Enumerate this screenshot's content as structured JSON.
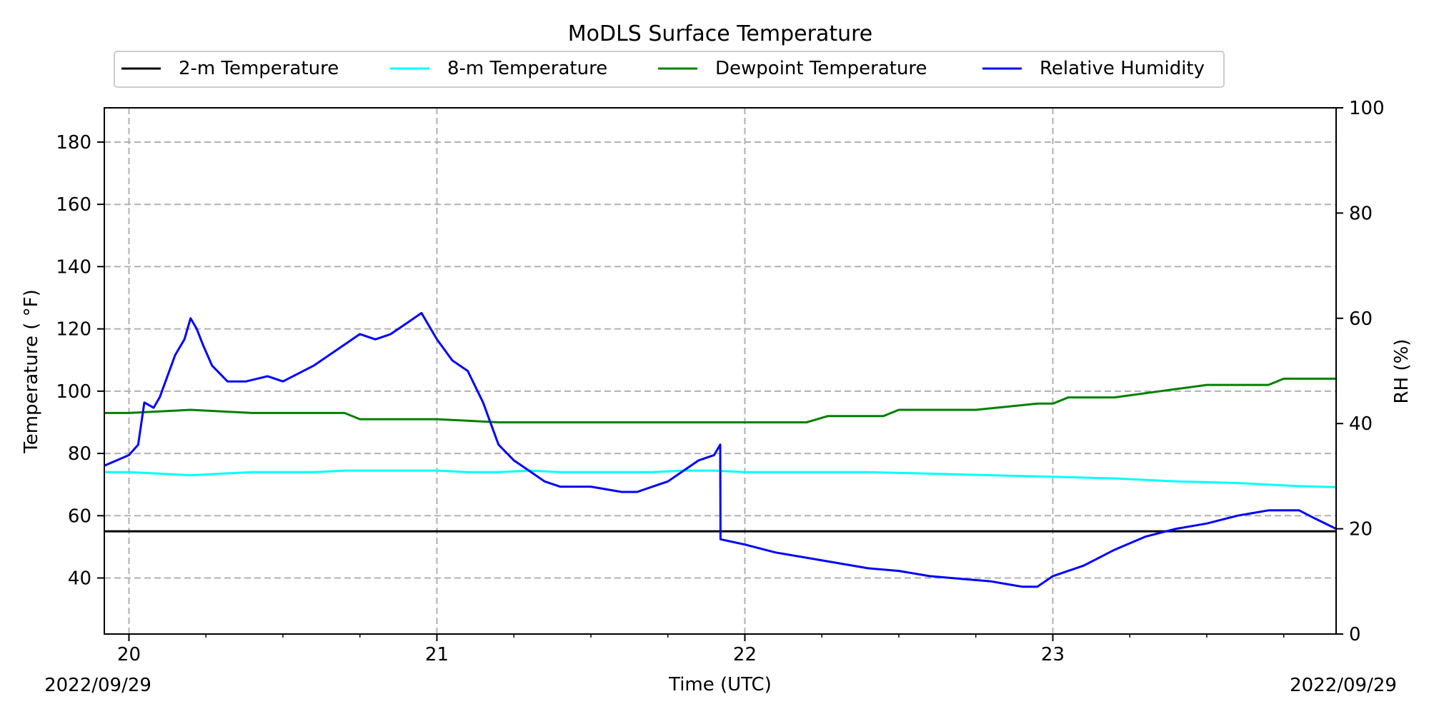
{
  "chart_data": {
    "type": "line",
    "title": "MoDLS Surface Temperature",
    "xlabel": "Time (UTC)",
    "ylabel_left": "Temperature ( °F)",
    "ylabel_right": "RH (%)",
    "x_unit": "hour (UTC), 2022/09/29",
    "xlim": [
      19.92,
      23.92
    ],
    "ylim_left": [
      22,
      191
    ],
    "ylim_right": [
      0,
      100
    ],
    "x_ticks": [
      20,
      21,
      22,
      23
    ],
    "x_tick_labels": [
      "20",
      "21",
      "22",
      "23"
    ],
    "y_ticks_left": [
      40,
      60,
      80,
      100,
      120,
      140,
      160,
      180
    ],
    "y_ticks_right": [
      0,
      20,
      40,
      60,
      80,
      100
    ],
    "date_left": "2022/09/29",
    "date_right": "2022/09/29",
    "grid": true,
    "legend_position": "top, above plot",
    "series": [
      {
        "name": "2-m Temperature",
        "axis": "left",
        "color": "#000000",
        "x": [
          19.92,
          20.5,
          21.0,
          21.5,
          22.0,
          22.5,
          23.0,
          23.5,
          23.92
        ],
        "y": [
          55,
          55,
          55,
          55,
          55,
          55,
          55,
          55,
          55
        ]
      },
      {
        "name": "8-m Temperature",
        "axis": "left",
        "color": "#00ffff",
        "x": [
          19.92,
          20.0,
          20.1,
          20.2,
          20.3,
          20.4,
          20.5,
          20.6,
          20.7,
          20.8,
          20.9,
          21.0,
          21.1,
          21.2,
          21.3,
          21.4,
          21.5,
          21.6,
          21.7,
          21.8,
          21.9,
          22.0,
          22.2,
          22.4,
          22.6,
          22.8,
          23.0,
          23.2,
          23.4,
          23.6,
          23.8,
          23.92
        ],
        "y": [
          74,
          74,
          73.5,
          73,
          73.5,
          74,
          74,
          74,
          74.5,
          74.5,
          74.5,
          74.5,
          74,
          74,
          74.5,
          74,
          74,
          74,
          74,
          74.5,
          74.5,
          74,
          74,
          74,
          73.5,
          73,
          72.5,
          72,
          71,
          70.5,
          69.5,
          69.2
        ]
      },
      {
        "name": "Dewpoint Temperature",
        "axis": "left",
        "color": "#008000",
        "x": [
          19.92,
          20.0,
          20.2,
          20.4,
          20.6,
          20.7,
          20.75,
          21.0,
          21.2,
          21.35,
          21.5,
          21.6,
          21.8,
          22.0,
          22.2,
          22.27,
          22.45,
          22.5,
          22.75,
          22.95,
          23.0,
          23.05,
          23.2,
          23.35,
          23.5,
          23.7,
          23.75,
          23.92
        ],
        "y": [
          93,
          93,
          94,
          93,
          93,
          93,
          91,
          91,
          90,
          90,
          90,
          90,
          90,
          90,
          90,
          92,
          92,
          94,
          94,
          96,
          96,
          98,
          98,
          100,
          102,
          102,
          104,
          104
        ]
      },
      {
        "name": "Relative Humidity",
        "axis": "right",
        "color": "#0000ff",
        "x": [
          19.92,
          20.0,
          20.03,
          20.05,
          20.08,
          20.1,
          20.15,
          20.18,
          20.2,
          20.22,
          20.24,
          20.27,
          20.32,
          20.38,
          20.45,
          20.5,
          20.6,
          20.7,
          20.75,
          20.8,
          20.85,
          20.9,
          20.95,
          21.0,
          21.05,
          21.1,
          21.15,
          21.2,
          21.25,
          21.3,
          21.35,
          21.4,
          21.5,
          21.6,
          21.65,
          21.7,
          21.75,
          21.8,
          21.85,
          21.9,
          21.92,
          21.921,
          22.0,
          22.1,
          22.2,
          22.3,
          22.4,
          22.5,
          22.6,
          22.7,
          22.8,
          22.85,
          22.9,
          22.95,
          23.0,
          23.1,
          23.2,
          23.3,
          23.4,
          23.5,
          23.6,
          23.65,
          23.7,
          23.75,
          23.8,
          23.85,
          23.92
        ],
        "y": [
          32,
          34,
          36,
          44,
          43,
          45,
          53,
          56,
          60,
          58,
          55,
          51,
          48,
          48,
          49,
          48,
          51,
          55,
          57,
          56,
          57,
          59,
          61,
          56,
          52,
          50,
          44,
          36,
          33,
          31,
          29,
          28,
          28,
          27,
          27,
          28,
          29,
          31,
          33,
          34,
          36,
          18,
          17,
          15.5,
          14.5,
          13.5,
          12.5,
          12,
          11,
          10.5,
          10,
          9.5,
          9,
          9,
          11,
          13,
          16,
          18.5,
          20,
          21,
          22.5,
          23,
          23.5,
          23.5,
          23.5,
          22,
          20
        ]
      }
    ]
  }
}
